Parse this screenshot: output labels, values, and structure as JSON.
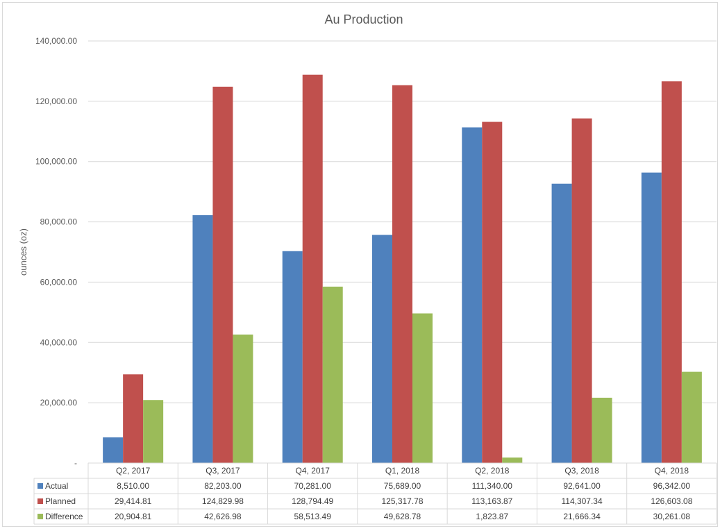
{
  "chart_data": {
    "type": "bar",
    "title": "Au Production",
    "xlabel": "",
    "ylabel": "ounces (oz)",
    "ylim": [
      0,
      140000
    ],
    "yticks": [
      0,
      20000,
      40000,
      60000,
      80000,
      100000,
      120000,
      140000
    ],
    "ytick_labels": [
      "-",
      "20,000.00",
      "40,000.00",
      "60,000.00",
      "80,000.00",
      "100,000.00",
      "120,000.00",
      "140,000.00"
    ],
    "grid": true,
    "legend": "data table",
    "categories": [
      "Q2, 2017",
      "Q3, 2017",
      "Q4, 2017",
      "Q1, 2018",
      "Q2, 2018",
      "Q3, 2018",
      "Q4, 2018"
    ],
    "series": [
      {
        "name": "Actual",
        "color": "#4f81bd",
        "values": [
          8510.0,
          82203.0,
          70281.0,
          75689.0,
          111340.0,
          92641.0,
          96342.0
        ],
        "labels": [
          "8,510.00",
          "82,203.00",
          "70,281.00",
          "75,689.00",
          "111,340.00",
          "92,641.00",
          "96,342.00"
        ]
      },
      {
        "name": "Planned",
        "color": "#c0504d",
        "values": [
          29414.81,
          124829.98,
          128794.49,
          125317.78,
          113163.87,
          114307.34,
          126603.08
        ],
        "labels": [
          "29,414.81",
          "124,829.98",
          "128,794.49",
          "125,317.78",
          "113,163.87",
          "114,307.34",
          "126,603.08"
        ]
      },
      {
        "name": "Difference",
        "color": "#9bbb59",
        "values": [
          20904.81,
          42626.98,
          58513.49,
          49628.78,
          1823.87,
          21666.34,
          30261.08
        ],
        "labels": [
          "20,904.81",
          "42,626.98",
          "58,513.49",
          "49,628.78",
          "1,823.87",
          "21,666.34",
          "30,261.08"
        ]
      }
    ]
  }
}
